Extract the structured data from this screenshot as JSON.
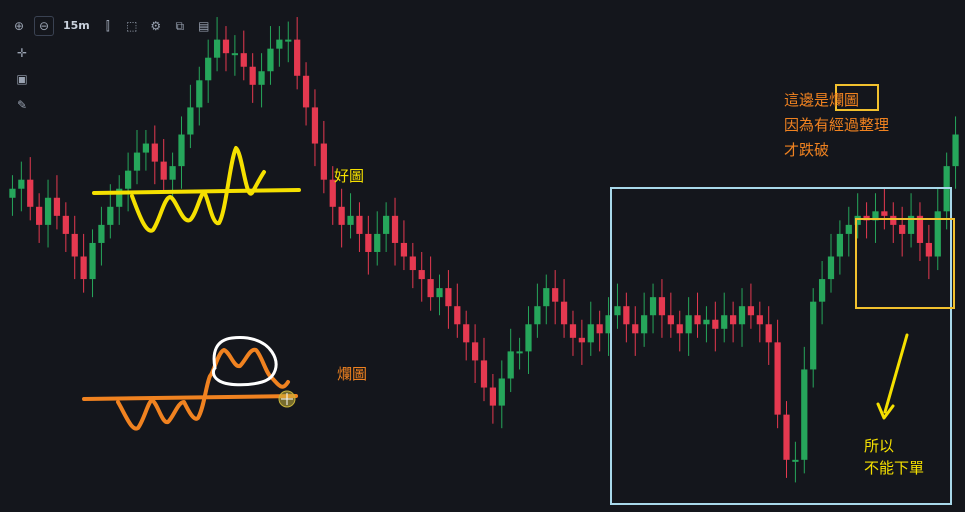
{
  "toolbar": {
    "timeframe": "15m",
    "icons": [
      "zoom-in-icon",
      "zoom-out-icon",
      "timeframe-label",
      "candles-icon",
      "select-box-icon",
      "settings-gear-icon",
      "indicators-icon",
      "save-icon"
    ]
  },
  "side_tools": [
    "crosshair-icon",
    "note-icon",
    "pen-icon"
  ],
  "annotations": {
    "good_pattern_label": "好圖",
    "bad_pattern_label": "爛圖",
    "explanation_line1_prefix": "這邊是",
    "explanation_line1_highlight": "爛圖",
    "explanation_line2": "因為有經過整理",
    "explanation_line3": "才跌破",
    "arrow_note_line1": "所以",
    "arrow_note_line2": "不能下單"
  },
  "colors": {
    "background": "#14161c",
    "bull_candle": "#26a65b",
    "bear_candle": "#e53950",
    "good_sketch": "#f5e000",
    "bad_sketch": "#f08220",
    "highlight_circle": "#ffffff",
    "range_box": "#a8d8ea",
    "consolidation_box": "#f2c12e",
    "annotation_orange": "#f08220",
    "annotation_yellow": "#f5e000"
  },
  "chart_data": {
    "type": "candlestick",
    "timeframe": "15m",
    "note": "Price axis not shown; values are relative price levels read visually (higher = higher price).",
    "segments": [
      {
        "name": "left-rally",
        "values": [
          70,
          72,
          66,
          62,
          68,
          64,
          60,
          55,
          50,
          58,
          62,
          66,
          70,
          74,
          78,
          80,
          76,
          72,
          75,
          82,
          88,
          94,
          99,
          103,
          100
        ]
      },
      {
        "name": "top-area",
        "values": [
          100,
          97,
          93,
          96,
          101,
          103
        ]
      },
      {
        "name": "sell-off",
        "values": [
          103,
          95,
          88,
          80,
          72,
          66,
          62,
          64,
          60,
          56,
          60,
          64,
          58,
          55,
          52,
          50,
          46,
          48,
          44,
          40,
          36,
          32,
          26,
          22,
          28,
          34
        ]
      },
      {
        "name": "range-box-consolidation",
        "values": [
          34,
          40,
          44,
          48,
          45,
          40,
          37,
          36,
          40,
          38,
          42,
          44,
          40,
          38,
          42,
          46,
          42,
          40,
          38,
          42,
          40,
          41,
          39,
          42,
          40,
          44,
          42,
          40,
          36,
          20,
          10
        ]
      },
      {
        "name": "breakout-rebound",
        "values": [
          10,
          30,
          45,
          50,
          55,
          60,
          62,
          64,
          63,
          65,
          64,
          62,
          60,
          64,
          58,
          55,
          65,
          75,
          82
        ]
      }
    ]
  }
}
